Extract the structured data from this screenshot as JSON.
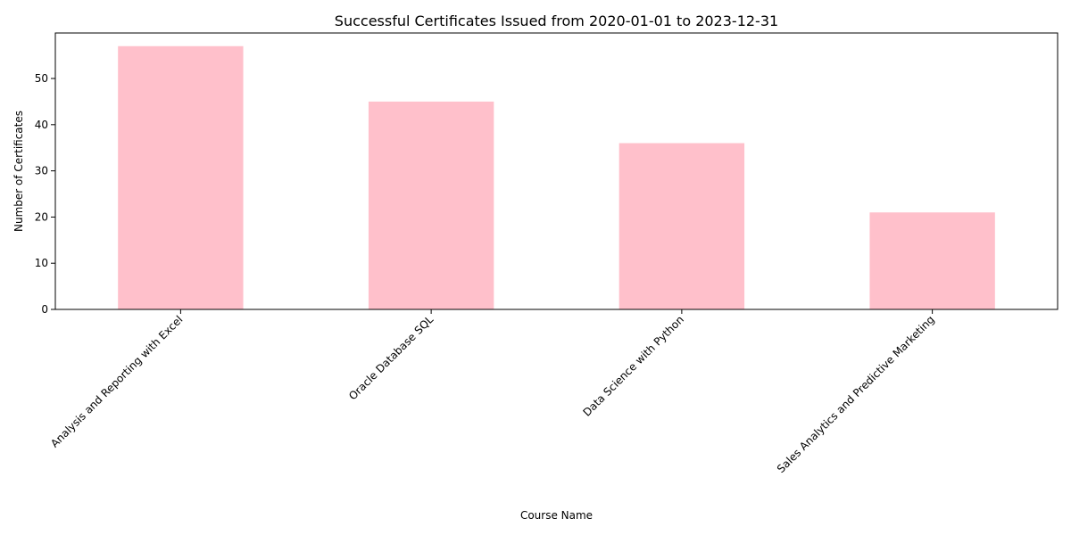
{
  "chart_data": {
    "type": "bar",
    "title": "Successful Certificates Issued from 2020-01-01 to 2023-12-31",
    "xlabel": "Course Name",
    "ylabel": "Number of Certificates",
    "categories": [
      "Analysis and Reporting with Excel",
      "Oracle Database SQL",
      "Data Science with Python",
      "Sales Analytics and Predictive Marketing"
    ],
    "values": [
      57,
      45,
      36,
      21
    ],
    "ylim": [
      0,
      59.85
    ],
    "yticks": [
      "0",
      "10",
      "20",
      "30",
      "40",
      "50"
    ],
    "grid": false,
    "legend": "none",
    "bar_color": "#ffc0cb"
  }
}
